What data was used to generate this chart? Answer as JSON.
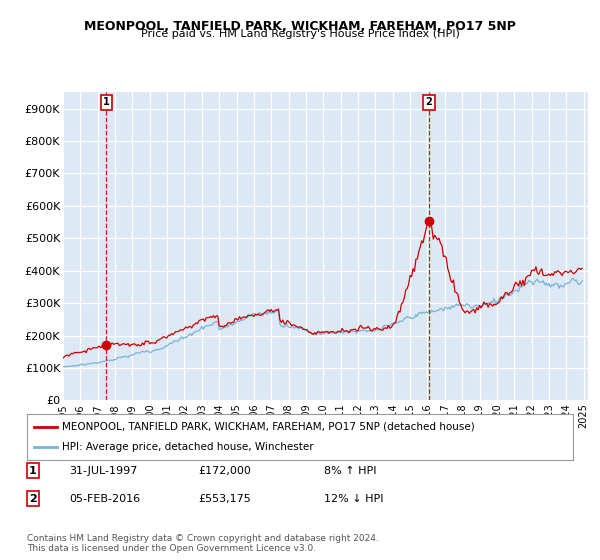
{
  "title": "MEONPOOL, TANFIELD PARK, WICKHAM, FAREHAM, PO17 5NP",
  "subtitle": "Price paid vs. HM Land Registry's House Price Index (HPI)",
  "ylim": [
    0,
    950000
  ],
  "yticks": [
    0,
    100000,
    200000,
    300000,
    400000,
    500000,
    600000,
    700000,
    800000,
    900000
  ],
  "ytick_labels": [
    "£0",
    "£100K",
    "£200K",
    "£300K",
    "£400K",
    "£500K",
    "£600K",
    "£700K",
    "£800K",
    "£900K"
  ],
  "background_color": "#dce9f5",
  "grid_color": "#ffffff",
  "line1_color": "#cc0000",
  "line2_color": "#7ab3d4",
  "marker_color": "#cc0000",
  "sale1_year": 1997.58,
  "sale1_val": 172000,
  "sale2_year": 2016.09,
  "sale2_val": 553175,
  "legend_label1": "MEONPOOL, TANFIELD PARK, WICKHAM, FAREHAM, PO17 5NP (detached house)",
  "legend_label2": "HPI: Average price, detached house, Winchester",
  "note1_label": "1",
  "note1_date": "31-JUL-1997",
  "note1_price": "£172,000",
  "note1_hpi": "8% ↑ HPI",
  "note2_label": "2",
  "note2_date": "05-FEB-2016",
  "note2_price": "£553,175",
  "note2_hpi": "12% ↓ HPI",
  "footer": "Contains HM Land Registry data © Crown copyright and database right 2024.\nThis data is licensed under the Open Government Licence v3.0.",
  "xmin": 1995.25,
  "xmax": 2025.25
}
